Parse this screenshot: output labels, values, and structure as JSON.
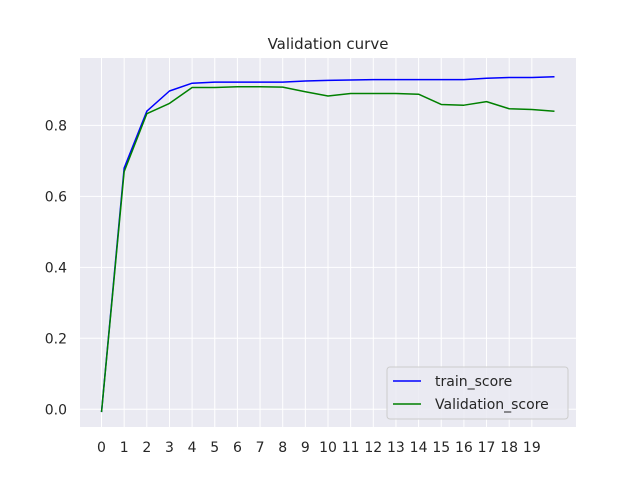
{
  "chart_data": {
    "type": "line",
    "title": "Validation curve",
    "xlabel": "",
    "ylabel": "",
    "x": [
      0,
      1,
      2,
      3,
      4,
      5,
      6,
      7,
      8,
      9,
      10,
      11,
      12,
      13,
      14,
      15,
      16,
      17,
      18,
      19,
      20
    ],
    "xticks": [
      0,
      1,
      2,
      3,
      4,
      5,
      6,
      7,
      8,
      9,
      10,
      11,
      12,
      13,
      14,
      15,
      16,
      17,
      18,
      19
    ],
    "yticks": [
      0.0,
      0.2,
      0.4,
      0.6,
      0.8
    ],
    "ytick_labels": [
      "0.0",
      "0.2",
      "0.4",
      "0.6",
      "0.8"
    ],
    "xlim": [
      -0.95,
      20.95
    ],
    "ylim": [
      -0.05,
      0.99
    ],
    "grid": true,
    "legend_position": "lower-right",
    "series": [
      {
        "name": "train_score",
        "color": "#0000ff",
        "values": [
          -0.008,
          0.68,
          0.84,
          0.897,
          0.919,
          0.922,
          0.922,
          0.922,
          0.922,
          0.925,
          0.927,
          0.928,
          0.929,
          0.929,
          0.929,
          0.929,
          0.929,
          0.933,
          0.935,
          0.935,
          0.937
        ]
      },
      {
        "name": "Validation_score",
        "color": "#008000",
        "values": [
          -0.008,
          0.67,
          0.833,
          0.862,
          0.907,
          0.907,
          0.909,
          0.909,
          0.908,
          0.895,
          0.883,
          0.89,
          0.89,
          0.89,
          0.888,
          0.859,
          0.857,
          0.867,
          0.847,
          0.845,
          0.84
        ]
      }
    ]
  }
}
